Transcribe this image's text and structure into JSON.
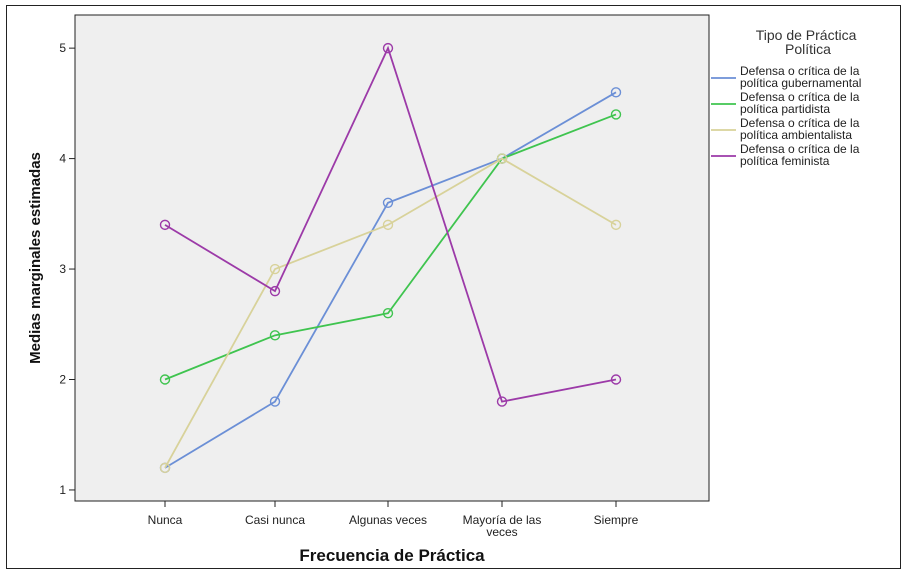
{
  "chart_data": {
    "type": "line",
    "title": "",
    "xlabel": "Frecuencia de Práctica",
    "ylabel": "Medias marginales estimadas",
    "categories": [
      "Nunca",
      "Casi nunca",
      "Algunas veces",
      "Mayoría de las veces",
      "Siempre"
    ],
    "yticks": [
      "1",
      "2",
      "3",
      "4",
      "5"
    ],
    "ylim": [
      0.9,
      5.3
    ],
    "grid": false,
    "legend_position": "right",
    "legend_title": "Tipo de Práctica Política",
    "series": [
      {
        "name": "Defensa o crítica de la política gubernamental",
        "color": "#6b8fd6",
        "values": [
          1.2,
          1.8,
          3.6,
          4.0,
          4.6
        ]
      },
      {
        "name": "Defensa o crítica de la política partidista",
        "color": "#3fc44f",
        "values": [
          2.0,
          2.4,
          2.6,
          4.0,
          4.4
        ]
      },
      {
        "name": "Defensa o crítica de la política ambientalista",
        "color": "#d8d29a",
        "values": [
          1.2,
          3.0,
          3.4,
          4.0,
          3.4
        ]
      },
      {
        "name": "Defensa o crítica de la política feminista",
        "color": "#9c3aa8",
        "values": [
          3.4,
          2.8,
          5.0,
          1.8,
          2.0
        ]
      }
    ]
  }
}
